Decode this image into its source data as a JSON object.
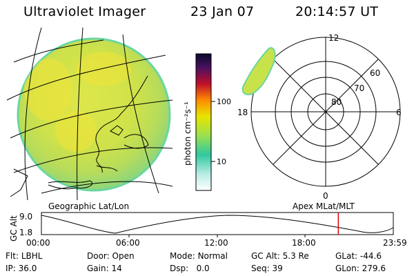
{
  "header": {
    "title": "Ultraviolet Imager",
    "date": "23 Jan 07",
    "time": "20:14:57 UT"
  },
  "colorbar": {
    "unit_label": "photon cm⁻²s⁻¹",
    "ticks": [
      "100",
      "10"
    ]
  },
  "panels": {
    "left_caption": "Geographic Lat/Lon",
    "right_caption": "Apex MLat/MLT"
  },
  "polar": {
    "mlt_labels": {
      "top": "12",
      "left": "18",
      "right": "6",
      "bottom": "0"
    },
    "lat_labels": [
      "60",
      "70",
      "80"
    ]
  },
  "orbit": {
    "axis_label": "GC Alt",
    "alt_ticks": [
      "9.0",
      "1.8"
    ],
    "time_ticks": [
      "00:00",
      "06:00",
      "12:00",
      "18:00",
      "23:59"
    ],
    "current_marker_hour": 20.25
  },
  "status": {
    "filter_label": "Flt:",
    "filter_value": "LBHL",
    "ip_label": "IP:",
    "ip_value": "36.0",
    "door_label": "Door:",
    "door_value": "Open",
    "gain_label": "Gain:",
    "gain_value": "14",
    "mode_label": "Mode:",
    "mode_value": "Normal",
    "dsp_label": "Dsp:",
    "dsp_value": "0.0",
    "gcalt_label": "GC Alt:",
    "gcalt_value": "5.3 Re",
    "seq_label": "Seq:",
    "seq_value": "39",
    "glat_label": "GLat:",
    "glat_value": "-44.6",
    "glon_label": "GLon:",
    "glon_value": "279.6"
  },
  "colors": {
    "orbit_marker": "#e00000",
    "emission_main": "#d8e84a",
    "emission_edge": "#6ad6a0"
  }
}
